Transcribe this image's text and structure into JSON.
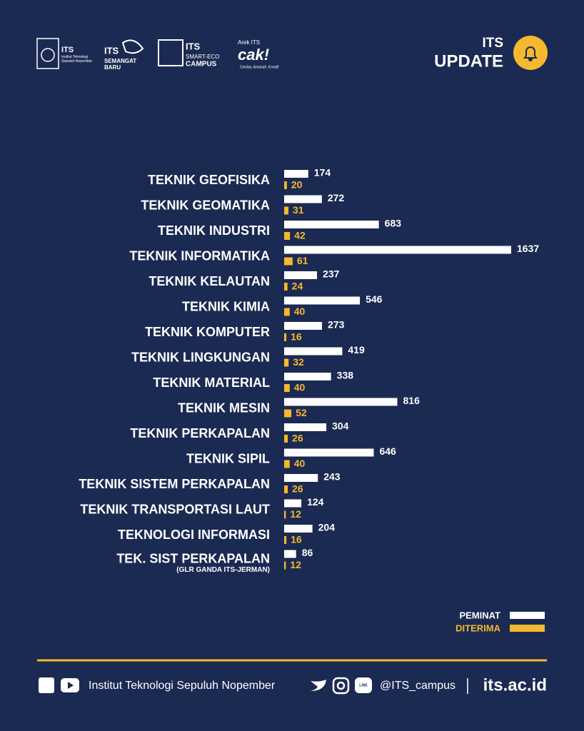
{
  "header": {
    "logo1_title": "ITS",
    "logo1_sub": "Institut Teknologi Sepuluh Nopember",
    "logo2_title": "ITS",
    "logo2_sub1": "SEMANGAT",
    "logo2_sub2": "BARU",
    "logo3_title": "ITS",
    "logo3_sub1": "SMART-ECO",
    "logo3_sub2": "CAMPUS",
    "logo4_top": "Arek ITS",
    "logo4_main": "cak!",
    "logo4_sub": "Cerdas, Amanah, Kreatif",
    "badge_top": "ITS",
    "badge_main": "UPDATE"
  },
  "chart_data": {
    "type": "bar",
    "orientation": "horizontal",
    "categories": [
      "TEKNIK GEOFISIKA",
      "TEKNIK GEOMATIKA",
      "TEKNIK INDUSTRI",
      "TEKNIK INFORMATIKA",
      "TEKNIK KELAUTAN",
      "TEKNIK KIMIA",
      "TEKNIK KOMPUTER",
      "TEKNIK LINGKUNGAN",
      "TEKNIK MATERIAL",
      "TEKNIK MESIN",
      "TEKNIK PERKAPALAN",
      "TEKNIK SIPIL",
      "TEKNIK SISTEM PERKAPALAN",
      "TEKNIK TRANSPORTASI LAUT",
      "TEKNOLOGI INFORMASI",
      "TEK. SIST PERKAPALAN"
    ],
    "category_notes": [
      null,
      null,
      null,
      null,
      null,
      null,
      null,
      null,
      null,
      null,
      null,
      null,
      null,
      null,
      null,
      "(GLR GANDA ITS-JERMAN)"
    ],
    "series": [
      {
        "name": "PEMINAT",
        "color": "#ffffff",
        "values": [
          174,
          272,
          683,
          1637,
          237,
          546,
          273,
          419,
          338,
          816,
          304,
          646,
          243,
          124,
          204,
          86
        ]
      },
      {
        "name": "DITERIMA",
        "color": "#f5b82e",
        "values": [
          20,
          31,
          42,
          61,
          24,
          40,
          16,
          32,
          40,
          52,
          26,
          40,
          26,
          12,
          16,
          12
        ]
      }
    ],
    "legend": "bottom-right"
  },
  "footer": {
    "org": "Institut Teknologi Sepuluh Nopember",
    "line_icon": "LINE",
    "handle": "@ITS_campus",
    "website": "its.ac.id"
  }
}
